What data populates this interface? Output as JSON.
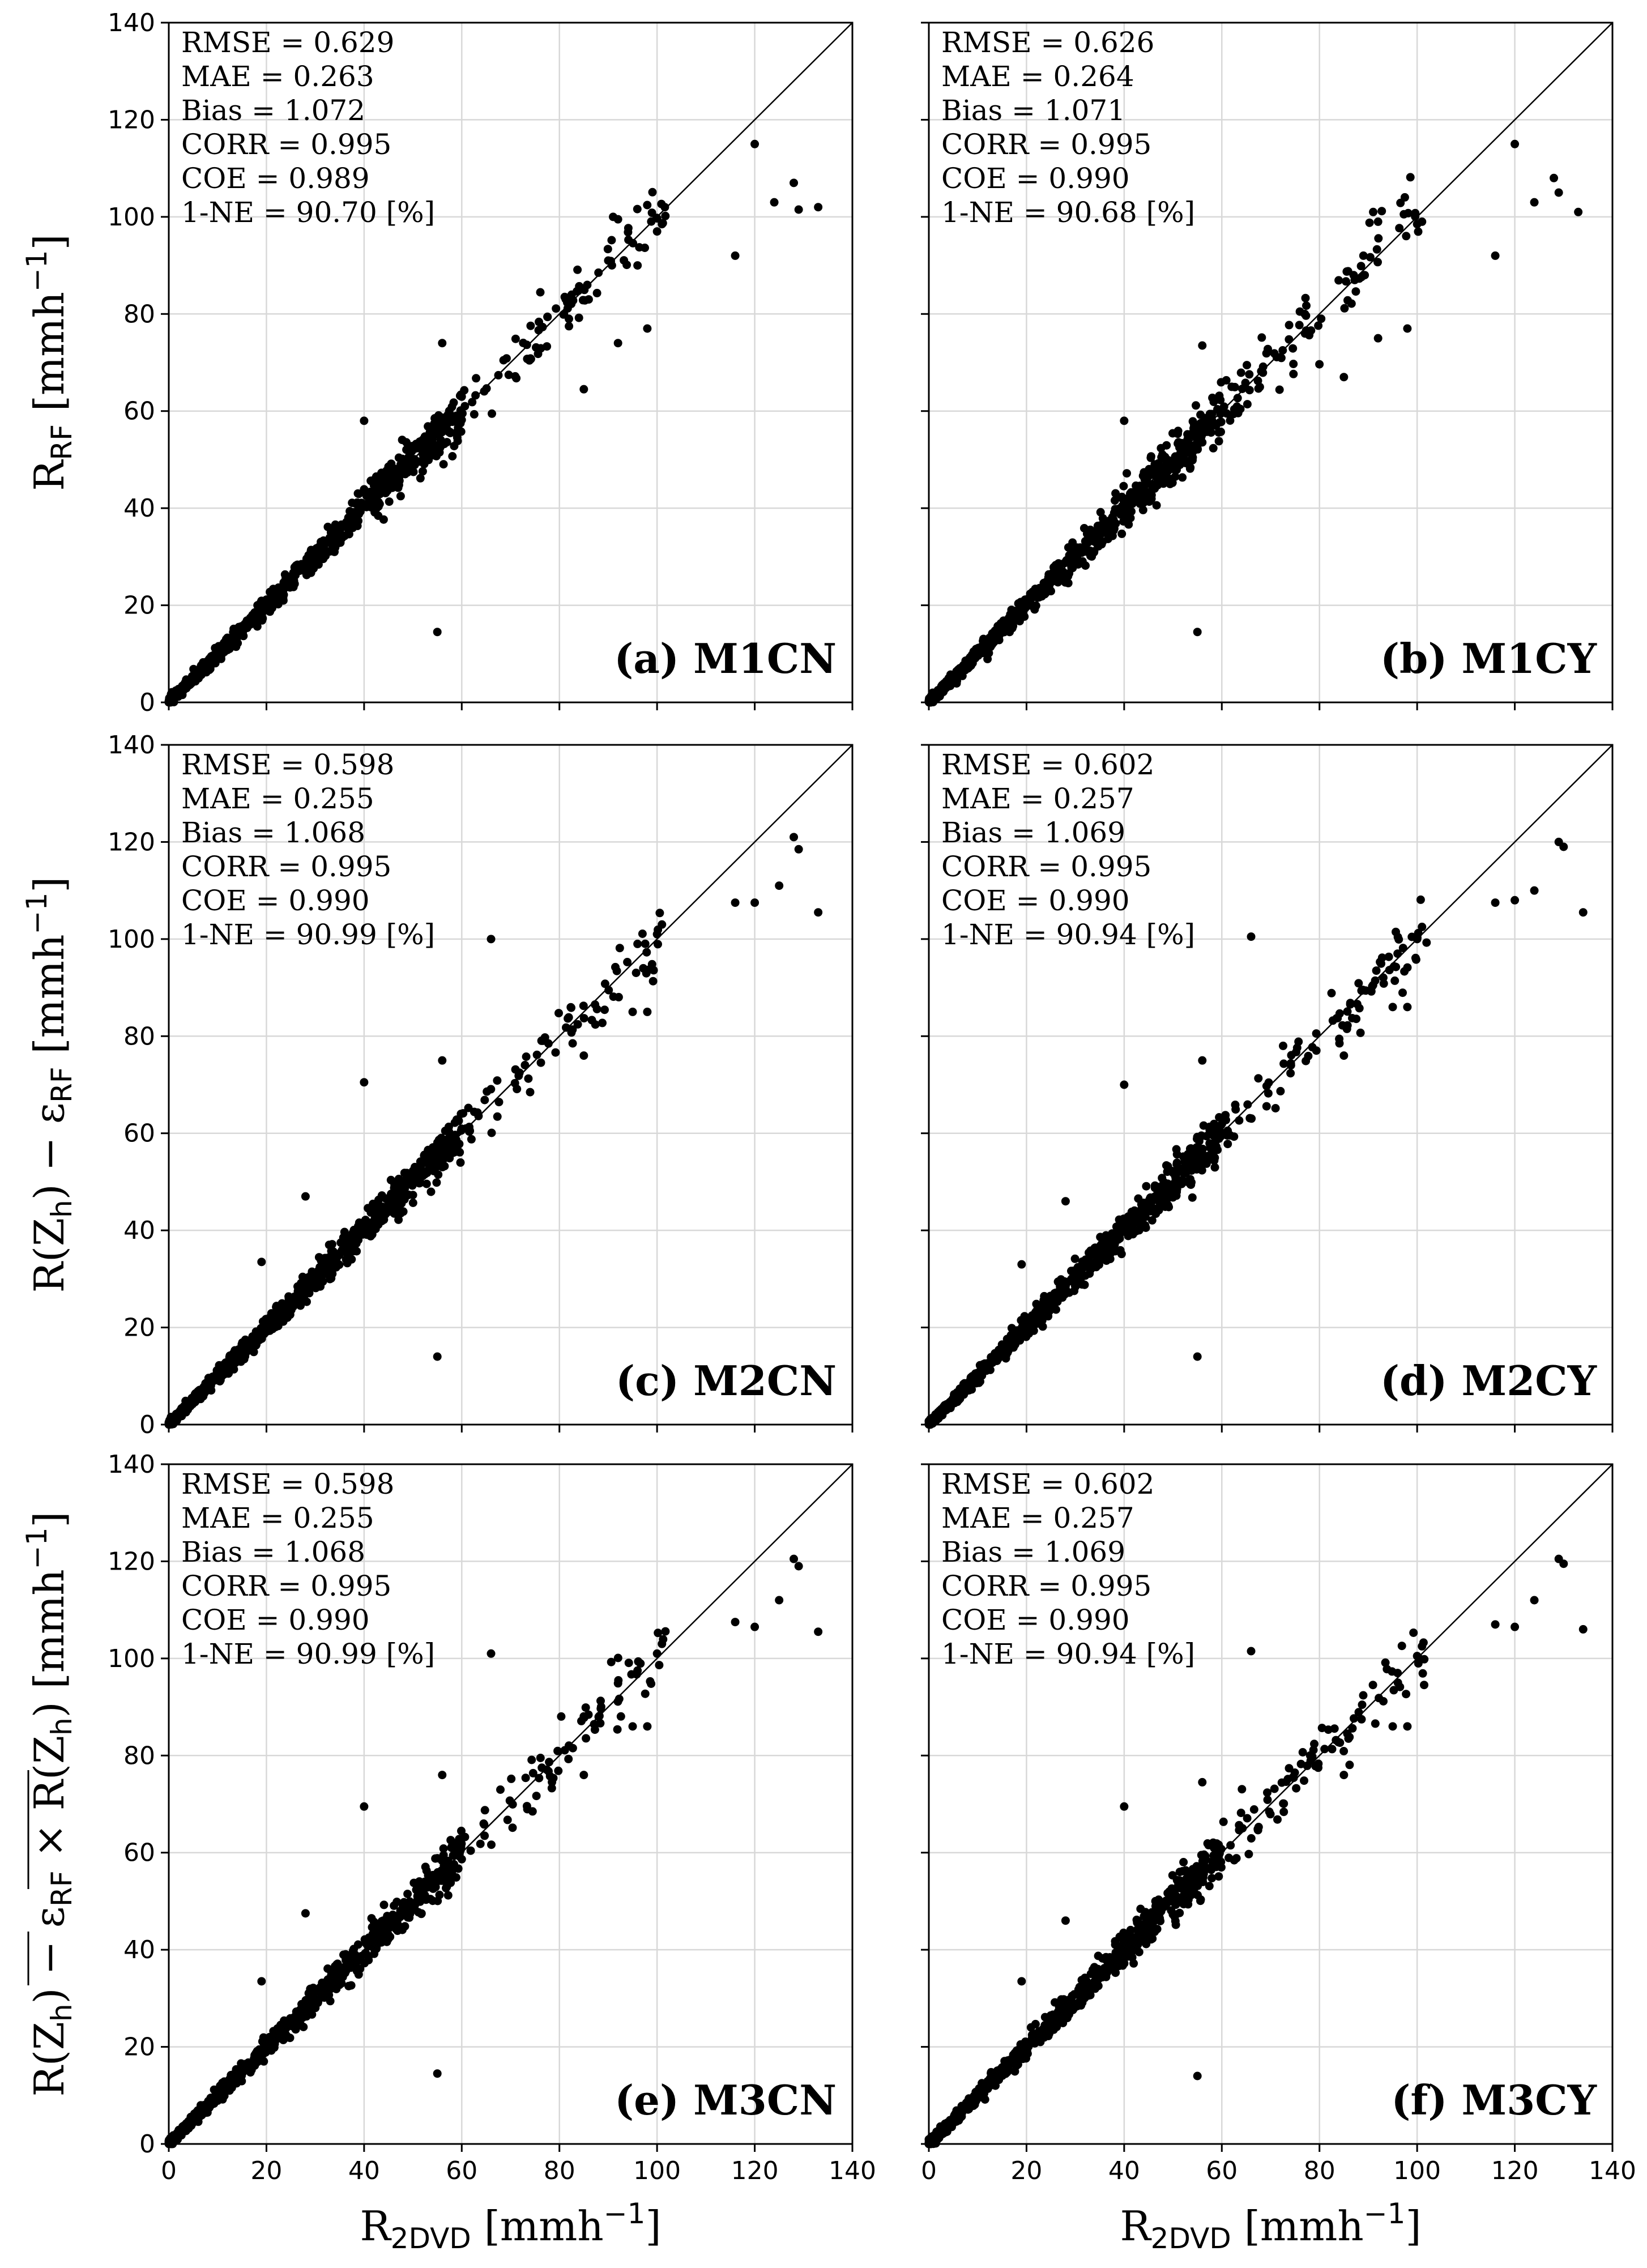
{
  "chart_data": [
    {
      "id": "a",
      "type": "scatter",
      "panel_label": "(a) M1CN",
      "xlim": [
        0,
        140
      ],
      "ylim": [
        0,
        140
      ],
      "xticks": [
        "0",
        "20",
        "40",
        "60",
        "80",
        "100",
        "120",
        "140"
      ],
      "yticks": [
        "0",
        "20",
        "40",
        "60",
        "80",
        "100",
        "120",
        "140"
      ],
      "stats": [
        "RMSE = 0.629",
        "MAE   = 0.263",
        "Bias    = 1.072",
        "CORR = 0.995",
        "COE    = 0.989",
        "1-NE    = 90.70 [%]"
      ],
      "outliers": [
        [
          120,
          115
        ],
        [
          124,
          103
        ],
        [
          128,
          107
        ],
        [
          129,
          101.5
        ],
        [
          133,
          102
        ],
        [
          116,
          92
        ],
        [
          101,
          98.5
        ],
        [
          100,
          97
        ],
        [
          96,
          90
        ],
        [
          98,
          77
        ],
        [
          92,
          74
        ],
        [
          85,
          64.5
        ],
        [
          56,
          74
        ],
        [
          55,
          14.5
        ],
        [
          40,
          58
        ],
        [
          92,
          99.5
        ],
        [
          91,
          100
        ],
        [
          90,
          91
        ],
        [
          88,
          88.5
        ],
        [
          86,
          83
        ]
      ],
      "spread": 2.2,
      "seed": 11
    },
    {
      "id": "b",
      "type": "scatter",
      "panel_label": "(b) M1CY",
      "xlim": [
        0,
        140
      ],
      "ylim": [
        0,
        140
      ],
      "xticks": [
        "0",
        "20",
        "40",
        "60",
        "80",
        "100",
        "120",
        "140"
      ],
      "yticks": [
        "0",
        "20",
        "40",
        "60",
        "80",
        "100",
        "120",
        "140"
      ],
      "stats": [
        "RMSE = 0.626",
        "MAE   = 0.264",
        "Bias    = 1.071",
        "CORR = 0.995",
        "COE    = 0.990",
        "1-NE    = 90.68 [%]"
      ],
      "outliers": [
        [
          120,
          115
        ],
        [
          124,
          103
        ],
        [
          128,
          108
        ],
        [
          129,
          105
        ],
        [
          133,
          101
        ],
        [
          116,
          92
        ],
        [
          101,
          99
        ],
        [
          100,
          98.5
        ],
        [
          98,
          77
        ],
        [
          92,
          75
        ],
        [
          85,
          67
        ],
        [
          56,
          73.5
        ],
        [
          55,
          14.5
        ],
        [
          40,
          58
        ],
        [
          91,
          101
        ],
        [
          92,
          99
        ],
        [
          89,
          92
        ],
        [
          87,
          88
        ]
      ],
      "spread": 2.2,
      "seed": 23
    },
    {
      "id": "c",
      "type": "scatter",
      "panel_label": "(c) M2CN",
      "xlim": [
        0,
        140
      ],
      "ylim": [
        0,
        140
      ],
      "xticks": [
        "0",
        "20",
        "40",
        "60",
        "80",
        "100",
        "120",
        "140"
      ],
      "yticks": [
        "0",
        "20",
        "40",
        "60",
        "80",
        "100",
        "120",
        "140"
      ],
      "stats": [
        "RMSE = 0.598",
        "MAE   = 0.255",
        "Bias    = 1.068",
        "CORR = 0.995",
        "COE    = 0.990",
        "1-NE    = 90.99 [%]"
      ],
      "outliers": [
        [
          128,
          121
        ],
        [
          129,
          118.5
        ],
        [
          125,
          111
        ],
        [
          133,
          105.5
        ],
        [
          116,
          107.5
        ],
        [
          120,
          107.5
        ],
        [
          66,
          100
        ],
        [
          55,
          14
        ],
        [
          40,
          70.5
        ],
        [
          28,
          47
        ],
        [
          19,
          33.5
        ],
        [
          101,
          103
        ],
        [
          100,
          101
        ],
        [
          96,
          99
        ],
        [
          98,
          85
        ],
        [
          95,
          85
        ],
        [
          85,
          76
        ],
        [
          56,
          75
        ]
      ],
      "spread": 2.0,
      "seed": 37
    },
    {
      "id": "d",
      "type": "scatter",
      "panel_label": "(d) M2CY",
      "xlim": [
        0,
        140
      ],
      "ylim": [
        0,
        140
      ],
      "xticks": [
        "0",
        "20",
        "40",
        "60",
        "80",
        "100",
        "120",
        "140"
      ],
      "yticks": [
        "0",
        "20",
        "40",
        "60",
        "80",
        "100",
        "120",
        "140"
      ],
      "stats": [
        "RMSE = 0.602",
        "MAE   = 0.257",
        "Bias    = 1.069",
        "CORR = 0.995",
        "COE    = 0.990",
        "1-NE    = 90.94 [%]"
      ],
      "outliers": [
        [
          129,
          120
        ],
        [
          130,
          119
        ],
        [
          124,
          110
        ],
        [
          134,
          105.5
        ],
        [
          116,
          107.5
        ],
        [
          120,
          108
        ],
        [
          66,
          100.5
        ],
        [
          55,
          14
        ],
        [
          40,
          70
        ],
        [
          28,
          46
        ],
        [
          19,
          33
        ],
        [
          101,
          102.5
        ],
        [
          100,
          100
        ],
        [
          96,
          97
        ],
        [
          98,
          86
        ],
        [
          95,
          86
        ],
        [
          85,
          76
        ],
        [
          56,
          75
        ]
      ],
      "spread": 2.0,
      "seed": 41
    },
    {
      "id": "e",
      "type": "scatter",
      "panel_label": "(e) M3CN",
      "xlim": [
        0,
        140
      ],
      "ylim": [
        0,
        140
      ],
      "xticks": [
        "0",
        "20",
        "40",
        "60",
        "80",
        "100",
        "120",
        "140"
      ],
      "yticks": [
        "0",
        "20",
        "40",
        "60",
        "80",
        "100",
        "120",
        "140"
      ],
      "stats": [
        "RMSE = 0.598",
        "MAE   = 0.255",
        "Bias    = 1.068",
        "CORR = 0.995",
        "COE    = 0.990",
        "1-NE    = 90.99 [%]"
      ],
      "outliers": [
        [
          128,
          120.5
        ],
        [
          129,
          119
        ],
        [
          125,
          112
        ],
        [
          133,
          105.5
        ],
        [
          116,
          107.5
        ],
        [
          120,
          106.5
        ],
        [
          66,
          101
        ],
        [
          55,
          14.5
        ],
        [
          40,
          69.5
        ],
        [
          28,
          47.5
        ],
        [
          19,
          33.5
        ],
        [
          101,
          103
        ],
        [
          100,
          101
        ],
        [
          96,
          97.5
        ],
        [
          98,
          86
        ],
        [
          95,
          86
        ],
        [
          85,
          76
        ],
        [
          56,
          76
        ]
      ],
      "spread": 2.0,
      "seed": 53
    },
    {
      "id": "f",
      "type": "scatter",
      "panel_label": "(f) M3CY",
      "xlim": [
        0,
        140
      ],
      "ylim": [
        0,
        140
      ],
      "xticks": [
        "0",
        "20",
        "40",
        "60",
        "80",
        "100",
        "120",
        "140"
      ],
      "yticks": [
        "0",
        "20",
        "40",
        "60",
        "80",
        "100",
        "120",
        "140"
      ],
      "stats": [
        "RMSE = 0.602",
        "MAE   = 0.257",
        "Bias    = 1.069",
        "CORR = 0.995",
        "COE    = 0.990",
        "1-NE    = 90.94 [%]"
      ],
      "outliers": [
        [
          129,
          120.5
        ],
        [
          130,
          119.5
        ],
        [
          124,
          112
        ],
        [
          134,
          106
        ],
        [
          116,
          107
        ],
        [
          120,
          106.5
        ],
        [
          66,
          101.5
        ],
        [
          55,
          14
        ],
        [
          40,
          69.5
        ],
        [
          28,
          46
        ],
        [
          19,
          33.5
        ],
        [
          101,
          102.5
        ],
        [
          100,
          100.5
        ],
        [
          96,
          97
        ],
        [
          98,
          86
        ],
        [
          95,
          86
        ],
        [
          85,
          76
        ],
        [
          56,
          74.5
        ]
      ],
      "spread": 2.0,
      "seed": 67
    }
  ],
  "axes": {
    "ylabel_row1": {
      "main": "R",
      "sub": "RF",
      "unit": " [mmh",
      "exp": "−1",
      "close": "]"
    },
    "ylabel_row2": {
      "prefix": "R(Z",
      "sub1": "h",
      "mid": ") − ε",
      "sub2": "RF",
      "unit": " [mmh",
      "exp": "−1",
      "close": "]"
    },
    "ylabel_row3": {
      "prefix": "R(Z",
      "sub1": "h",
      "mid": ") − ",
      "eps": "ε",
      "sub2": "RF",
      "times": " × ",
      "rz": "R(Z",
      "sub3": "h",
      "rzclose": ")",
      "unit": " [mmh",
      "exp": "−1",
      "close": "]"
    },
    "xlabel": {
      "main": "R",
      "sub": "2DVD",
      "unit": " [mmh",
      "exp": "−1",
      "close": "]"
    }
  },
  "style": {
    "marker_color": "#000000",
    "grid_color": "#d8d8d8",
    "line_color": "#000000"
  }
}
